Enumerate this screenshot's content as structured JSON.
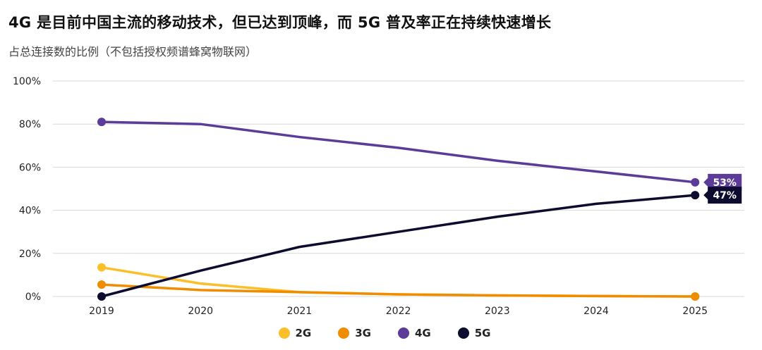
{
  "title": "4G 是目前中国主流的移动技术，但已达到顶峰，而 5G 普及率正在持续快速增长",
  "subtitle": "占总连接数的比例（不包括授权频谱蜂窝物联网）",
  "chart_data": {
    "type": "line",
    "x": [
      "2019",
      "2020",
      "2021",
      "2022",
      "2023",
      "2024",
      "2025"
    ],
    "yticks": [
      "0%",
      "20%",
      "40%",
      "60%",
      "80%",
      "100%"
    ],
    "ylim": [
      0,
      100
    ],
    "grid": true,
    "legend_placement": "bottom",
    "series": [
      {
        "name": "2G",
        "color": "#fbbf2a",
        "values": [
          13.5,
          6,
          2,
          1,
          0.5,
          0.2,
          0
        ]
      },
      {
        "name": "3G",
        "color": "#f08c00",
        "values": [
          5.5,
          3,
          2,
          1,
          0.5,
          0.2,
          0
        ]
      },
      {
        "name": "4G",
        "color": "#5b3c98",
        "values": [
          81,
          80,
          74,
          69,
          63,
          58,
          53
        ]
      },
      {
        "name": "5G",
        "color": "#0d0b2e",
        "values": [
          0,
          12,
          23,
          30,
          37,
          43,
          47
        ]
      }
    ],
    "end_labels": [
      {
        "series": "4G",
        "text": "53%"
      },
      {
        "series": "5G",
        "text": "47%"
      }
    ]
  }
}
